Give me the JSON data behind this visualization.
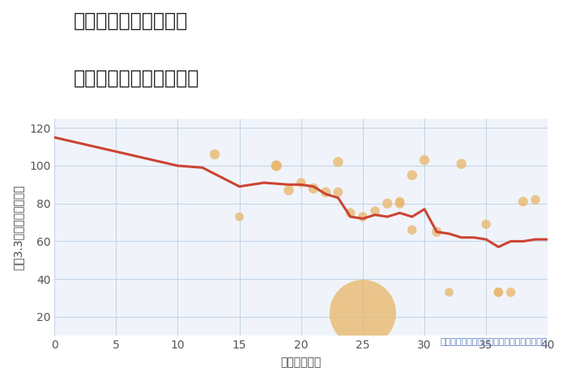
{
  "title_line1": "奈良県奈良市松陽台の",
  "title_line2": "築年数別中古戸建て価格",
  "xlabel": "築年数（年）",
  "ylabel": "坪（3.3㎡）単価（万円）",
  "annotation": "円の大きさは、取引のあった物件面積を示す",
  "xlim": [
    0,
    40
  ],
  "ylim": [
    10,
    125
  ],
  "xticks": [
    0,
    5,
    10,
    15,
    20,
    25,
    30,
    35,
    40
  ],
  "yticks": [
    20,
    40,
    60,
    80,
    100,
    120
  ],
  "line_color": "#cc4433",
  "scatter_color": "#e8b86d",
  "scatter_alpha": 0.78,
  "background_color": "#f0f4fa",
  "grid_color": "#c5d5e8",
  "line_x": [
    0,
    10,
    12,
    15,
    17,
    19,
    20,
    21,
    22,
    23,
    24,
    25,
    26,
    27,
    28,
    29,
    30,
    31,
    32,
    33,
    34,
    35,
    36,
    37,
    38,
    39,
    40
  ],
  "line_y": [
    115,
    100,
    99,
    89,
    91,
    90,
    90,
    89,
    85,
    83,
    73,
    72,
    74,
    73,
    75,
    73,
    77,
    65,
    64,
    62,
    62,
    61,
    57,
    60,
    60,
    61,
    61
  ],
  "scatter_x": [
    13,
    15,
    18,
    18,
    19,
    20,
    21,
    22,
    23,
    23,
    24,
    25,
    25,
    26,
    27,
    28,
    28,
    29,
    29,
    30,
    31,
    32,
    33,
    35,
    36,
    36,
    37,
    38,
    39
  ],
  "scatter_y": [
    106,
    73,
    100,
    100,
    87,
    91,
    88,
    86,
    102,
    86,
    75,
    73,
    22,
    76,
    80,
    80,
    81,
    95,
    66,
    103,
    65,
    33,
    101,
    69,
    33,
    33,
    33,
    81,
    82
  ],
  "scatter_size": [
    80,
    60,
    90,
    80,
    80,
    70,
    85,
    80,
    80,
    75,
    70,
    70,
    3500,
    70,
    80,
    75,
    70,
    80,
    70,
    80,
    75,
    60,
    80,
    70,
    70,
    70,
    70,
    75,
    70
  ],
  "title_fontsize": 17,
  "label_fontsize": 10,
  "tick_fontsize": 10,
  "annotation_fontsize": 8,
  "annotation_color": "#5577bb"
}
